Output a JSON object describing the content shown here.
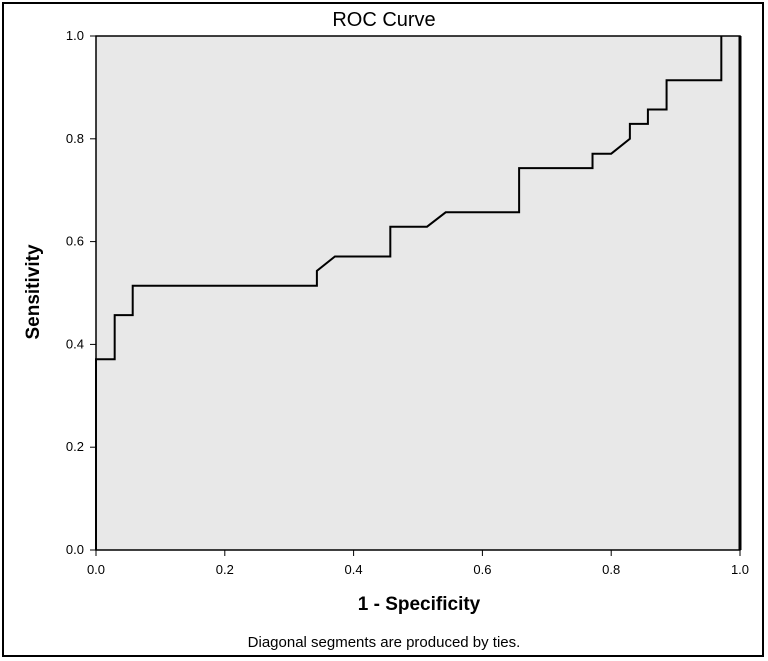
{
  "chart_data": {
    "type": "line",
    "title": "ROC Curve",
    "xlabel": "1 - Specificity",
    "ylabel": "Sensitivity",
    "footnote": "Diagonal segments are produced by ties.",
    "xlim": [
      0.0,
      1.0
    ],
    "ylim": [
      0.0,
      1.0
    ],
    "xticks": [
      "0.0",
      "0.2",
      "0.4",
      "0.6",
      "0.8",
      "1.0"
    ],
    "yticks": [
      "0.0",
      "0.2",
      "0.4",
      "0.6",
      "0.8",
      "1.0"
    ],
    "grid": false,
    "series": [
      {
        "x": [
          0.0,
          0.0,
          0.029,
          0.029,
          0.057,
          0.057,
          0.343,
          0.343,
          0.371,
          0.457,
          0.457,
          0.514,
          0.543,
          0.657,
          0.657,
          0.771,
          0.771,
          0.8,
          0.829,
          0.829,
          0.857,
          0.857,
          0.886,
          0.886,
          0.971,
          0.971
        ],
        "y": [
          0.0,
          0.371,
          0.371,
          0.457,
          0.457,
          0.514,
          0.514,
          0.543,
          0.571,
          0.571,
          0.629,
          0.629,
          0.657,
          0.657,
          0.743,
          0.743,
          0.771,
          0.771,
          0.8,
          0.829,
          0.829,
          0.857,
          0.857,
          0.914,
          0.914,
          1.0
        ]
      }
    ],
    "colors": {
      "plot_background": "#e8e8e8",
      "line": "#000000"
    }
  }
}
